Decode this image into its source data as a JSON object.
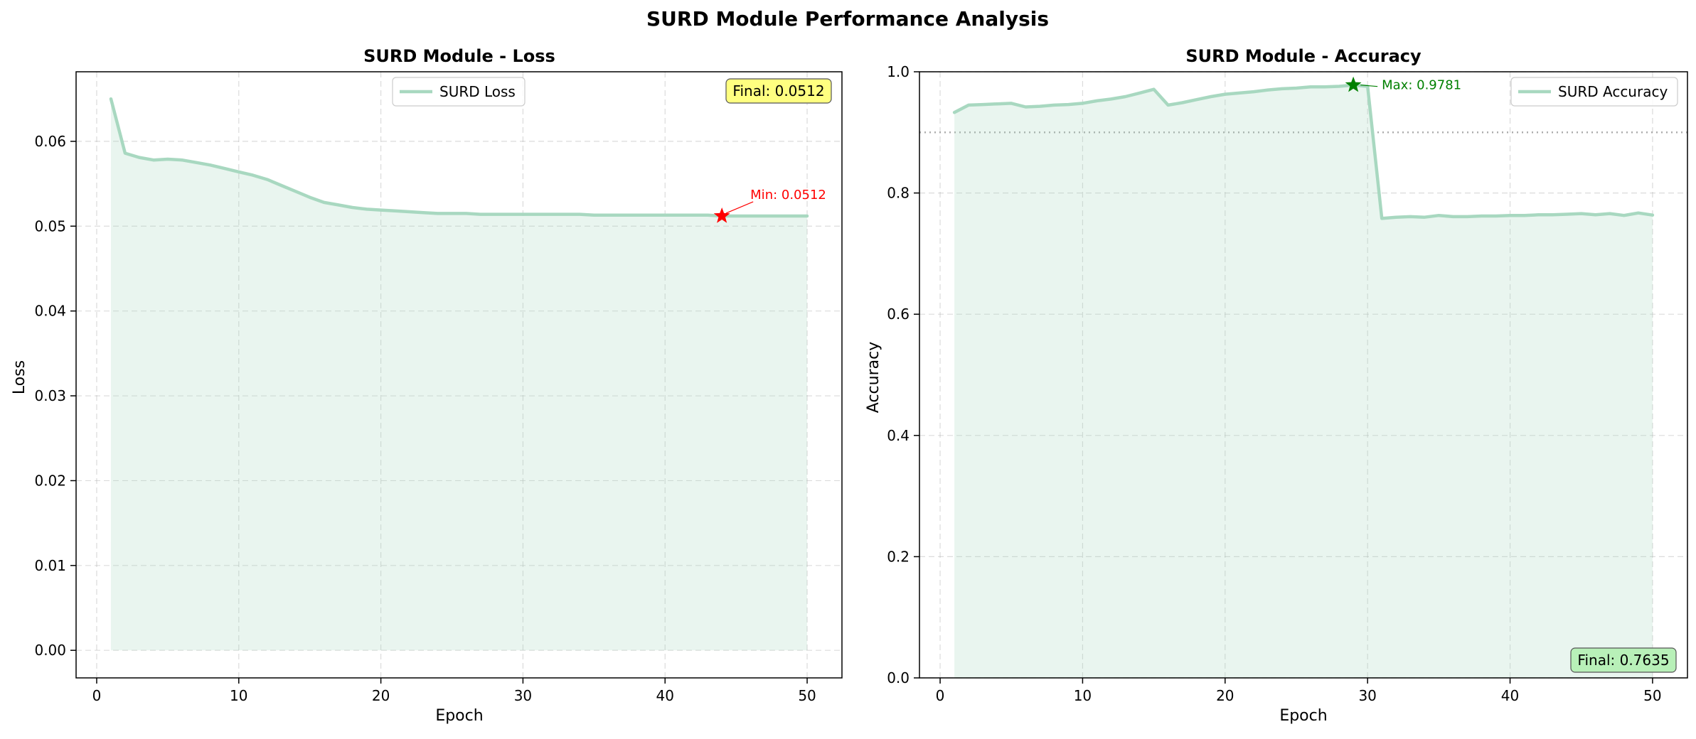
{
  "figure": {
    "title": "SURD Module Performance Analysis"
  },
  "chart_data": [
    {
      "type": "line",
      "title": "SURD Module - Loss",
      "xlabel": "Epoch",
      "ylabel": "Loss",
      "xlim": [
        -1.45,
        52.45
      ],
      "ylim": [
        -0.00325,
        0.0682
      ],
      "xticks": [
        0,
        10,
        20,
        30,
        40,
        50
      ],
      "yticks": [
        0.0,
        0.01,
        0.02,
        0.03,
        0.04,
        0.05,
        0.06
      ],
      "ytick_labels": [
        "0.00",
        "0.01",
        "0.02",
        "0.03",
        "0.04",
        "0.05",
        "0.06"
      ],
      "grid": true,
      "fill_under": true,
      "legend_position": "upper center",
      "color": "#a8d8c0",
      "series": [
        {
          "name": "SURD Loss",
          "x": [
            1,
            2,
            3,
            4,
            5,
            6,
            7,
            8,
            9,
            10,
            11,
            12,
            13,
            14,
            15,
            16,
            17,
            18,
            19,
            20,
            21,
            22,
            23,
            24,
            25,
            26,
            27,
            28,
            29,
            30,
            31,
            32,
            33,
            34,
            35,
            36,
            37,
            38,
            39,
            40,
            41,
            42,
            43,
            44,
            45,
            46,
            47,
            48,
            49,
            50
          ],
          "values": [
            0.065,
            0.0586,
            0.0581,
            0.0578,
            0.0579,
            0.0578,
            0.0575,
            0.0572,
            0.0568,
            0.0564,
            0.056,
            0.0555,
            0.0548,
            0.0541,
            0.0534,
            0.0528,
            0.0525,
            0.0522,
            0.052,
            0.0519,
            0.0518,
            0.0517,
            0.0516,
            0.0515,
            0.0515,
            0.0515,
            0.0514,
            0.0514,
            0.0514,
            0.0514,
            0.0514,
            0.0514,
            0.0514,
            0.0514,
            0.0513,
            0.0513,
            0.0513,
            0.0513,
            0.0513,
            0.0513,
            0.0513,
            0.0513,
            0.0513,
            0.0512,
            0.0512,
            0.0512,
            0.0512,
            0.0512,
            0.0512,
            0.0512
          ]
        }
      ],
      "annotations": {
        "min_label": "Min: 0.0512",
        "min_x": 44,
        "min_y": 0.0512,
        "min_color": "#ff0000",
        "final_label": "Final: 0.0512",
        "final_box_color": "#ffff80"
      }
    },
    {
      "type": "line",
      "title": "SURD Module - Accuracy",
      "xlabel": "Epoch",
      "ylabel": "Accuracy",
      "xlim": [
        -1.45,
        52.45
      ],
      "ylim": [
        0.0,
        1.0
      ],
      "xticks": [
        0,
        10,
        20,
        30,
        40,
        50
      ],
      "yticks": [
        0.0,
        0.2,
        0.4,
        0.6,
        0.8,
        1.0
      ],
      "ytick_labels": [
        "0.0",
        "0.2",
        "0.4",
        "0.6",
        "0.8",
        "1.0"
      ],
      "grid": true,
      "fill_under": true,
      "reference_line_y": 0.9,
      "legend_position": "upper right",
      "color": "#a8d8c0",
      "series": [
        {
          "name": "SURD Accuracy",
          "x": [
            1,
            2,
            3,
            4,
            5,
            6,
            7,
            8,
            9,
            10,
            11,
            12,
            13,
            14,
            15,
            16,
            17,
            18,
            19,
            20,
            21,
            22,
            23,
            24,
            25,
            26,
            27,
            28,
            29,
            30,
            31,
            32,
            33,
            34,
            35,
            36,
            37,
            38,
            39,
            40,
            41,
            42,
            43,
            44,
            45,
            46,
            47,
            48,
            49,
            50
          ],
          "values": [
            0.933,
            0.945,
            0.946,
            0.947,
            0.948,
            0.942,
            0.943,
            0.945,
            0.946,
            0.948,
            0.952,
            0.955,
            0.959,
            0.965,
            0.971,
            0.945,
            0.949,
            0.954,
            0.959,
            0.963,
            0.965,
            0.967,
            0.97,
            0.972,
            0.973,
            0.975,
            0.975,
            0.976,
            0.978,
            0.976,
            0.758,
            0.76,
            0.761,
            0.76,
            0.763,
            0.761,
            0.761,
            0.762,
            0.762,
            0.763,
            0.763,
            0.764,
            0.764,
            0.765,
            0.766,
            0.764,
            0.766,
            0.763,
            0.767,
            0.7635
          ]
        }
      ],
      "annotations": {
        "max_label": "Max: 0.9781",
        "max_x": 29,
        "max_y": 0.9781,
        "max_color": "#008000",
        "final_label": "Final: 0.7635",
        "final_box_color": "#b8f0b8"
      }
    }
  ]
}
